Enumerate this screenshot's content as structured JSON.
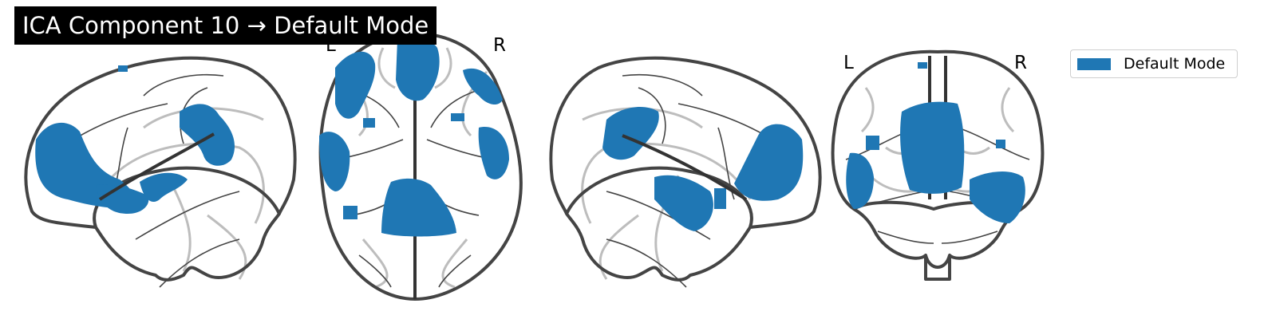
{
  "title": "ICA Component 10 → Default Mode",
  "labels": {
    "axial_left": "L",
    "axial_right": "R",
    "coronal_left": "L",
    "coronal_right": "R"
  },
  "legend": {
    "label": "Default Mode"
  },
  "colors": {
    "activation": "#1f77b4",
    "outline": "#444444",
    "ghost": "#bdbdbd",
    "title_bg": "#000000",
    "title_fg": "#ffffff"
  }
}
